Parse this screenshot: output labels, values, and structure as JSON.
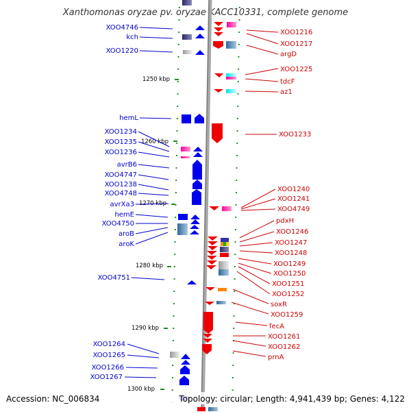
{
  "title": "Xanthomonas oryzae pv. oryzae KACC10331, complete genome",
  "accession": "Accession: NC_006834",
  "topology": "Topology: circular; Length: 4,941,439 bp; Genes: 4,122",
  "scale_labels": [
    "1250 kbp",
    "1260 kbp",
    "1270 kbp",
    "1280 kbp",
    "1290 kbp",
    "1300 kbp"
  ],
  "left_labels": [
    "XOO4746",
    "kch",
    "XOO1220",
    "hemL",
    "XOO1234",
    "XOO1235",
    "XOO1236",
    "avrB6",
    "XOO4747",
    "XOO1238",
    "XOO4748",
    "avrXa3",
    "hemE",
    "XOO4750",
    "aroB",
    "aroK",
    "XOO4751",
    "XOO1264",
    "XOO1265",
    "XOO1266",
    "XOO1267"
  ],
  "right_labels": [
    "XOO1216",
    "XOO1217",
    "argD",
    "XOO1225",
    "tdcF",
    "az1",
    "XOO1233",
    "XOO1240",
    "XOO1241",
    "XOO4749",
    "pdxH",
    "XOO1246",
    "XOO1247",
    "XOO1248",
    "XOO1249",
    "XOO1250",
    "XOO1251",
    "XOO1252",
    "soxR",
    "XOO1259",
    "fecA",
    "XOO1261",
    "XOO1262",
    "prnA"
  ],
  "colors": {
    "forward_strand": "#0000ee",
    "reverse_strand": "#ee0000",
    "backbone": "#888888",
    "ticks": "#228b22"
  }
}
